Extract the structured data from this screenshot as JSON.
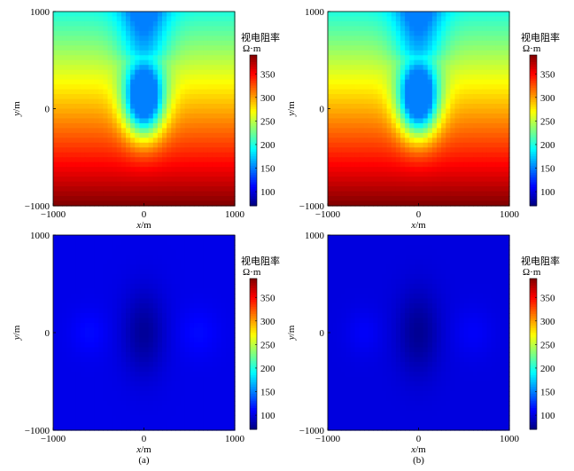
{
  "chart_data": [
    {
      "type": "heatmap",
      "xlabel_var": "x",
      "xlabel_unit": "/m",
      "ylabel_var": "y",
      "ylabel_unit": "/m",
      "xlim": [
        -1000,
        1000
      ],
      "ylim": [
        -1000,
        1000
      ],
      "xticks": [
        "−1000",
        "0",
        "1000"
      ],
      "yticks": [
        "1000",
        "0",
        "−1000"
      ],
      "colorbar": {
        "title": "视电阻率",
        "unit": "Ω·m",
        "range": [
          70,
          390
        ],
        "ticks": [
          "350",
          "300",
          "250",
          "200",
          "150",
          "100"
        ]
      },
      "field": {
        "description": "",
        "min": 150,
        "max": 390,
        "base_low": 200,
        "base_high": 390,
        "anomaly_center": [
          0,
          100
        ],
        "anomaly_radius": [
          220,
          380
        ],
        "anomaly_depth": 200
      },
      "panel_label": ""
    },
    {
      "type": "heatmap",
      "xlabel_var": "x",
      "xlabel_unit": "/m",
      "ylabel_var": "y",
      "ylabel_unit": "/m",
      "xlim": [
        -1000,
        1000
      ],
      "ylim": [
        -1000,
        1000
      ],
      "xticks": [
        "−1000",
        "0",
        "1000"
      ],
      "yticks": [
        "1000",
        "0",
        "−1000"
      ],
      "colorbar": {
        "title": "视电阻率",
        "unit": "Ω·m",
        "range": [
          70,
          390
        ],
        "ticks": [
          "350",
          "300",
          "250",
          "200",
          "150",
          "100"
        ]
      },
      "field": {
        "description": "",
        "min": 150,
        "max": 390,
        "base_low": 200,
        "base_high": 390,
        "anomaly_center": [
          0,
          100
        ],
        "anomaly_radius": [
          220,
          380
        ],
        "anomaly_depth": 200
      },
      "panel_label": ""
    },
    {
      "type": "heatmap",
      "xlabel_var": "x",
      "xlabel_unit": "/m",
      "ylabel_var": "y",
      "ylabel_unit": "/m",
      "xlim": [
        -1000,
        1000
      ],
      "ylim": [
        -1000,
        1000
      ],
      "xticks": [
        "−1000",
        "0",
        "1000"
      ],
      "yticks": [
        "1000",
        "0",
        "−1000"
      ],
      "colorbar": {
        "title": "视电阻率",
        "unit": "Ω·m",
        "range": [
          70,
          390
        ],
        "ticks": [
          "350",
          "300",
          "250",
          "200",
          "150",
          "100"
        ]
      },
      "field": {
        "description": "",
        "min": 75,
        "max": 115,
        "background": 103,
        "low_center": [
          0,
          0
        ],
        "low_value": 78,
        "side_high": 112
      },
      "panel_label": "(a)"
    },
    {
      "type": "heatmap",
      "xlabel_var": "x",
      "xlabel_unit": "/m",
      "ylabel_var": "y",
      "ylabel_unit": "/m",
      "xlim": [
        -1000,
        1000
      ],
      "ylim": [
        -1000,
        1000
      ],
      "xticks": [
        "−1000",
        "0",
        "1000"
      ],
      "yticks": [
        "1000",
        "0",
        "−1000"
      ],
      "colorbar": {
        "title": "视电阻率",
        "unit": "Ω·m",
        "range": [
          70,
          390
        ],
        "ticks": [
          "350",
          "300",
          "250",
          "200",
          "150",
          "100"
        ]
      },
      "field": {
        "description": "",
        "min": 75,
        "max": 115,
        "background": 100,
        "low_center": [
          0,
          0
        ],
        "low_value": 76,
        "side_high": 108
      },
      "panel_label": "(b)"
    }
  ]
}
